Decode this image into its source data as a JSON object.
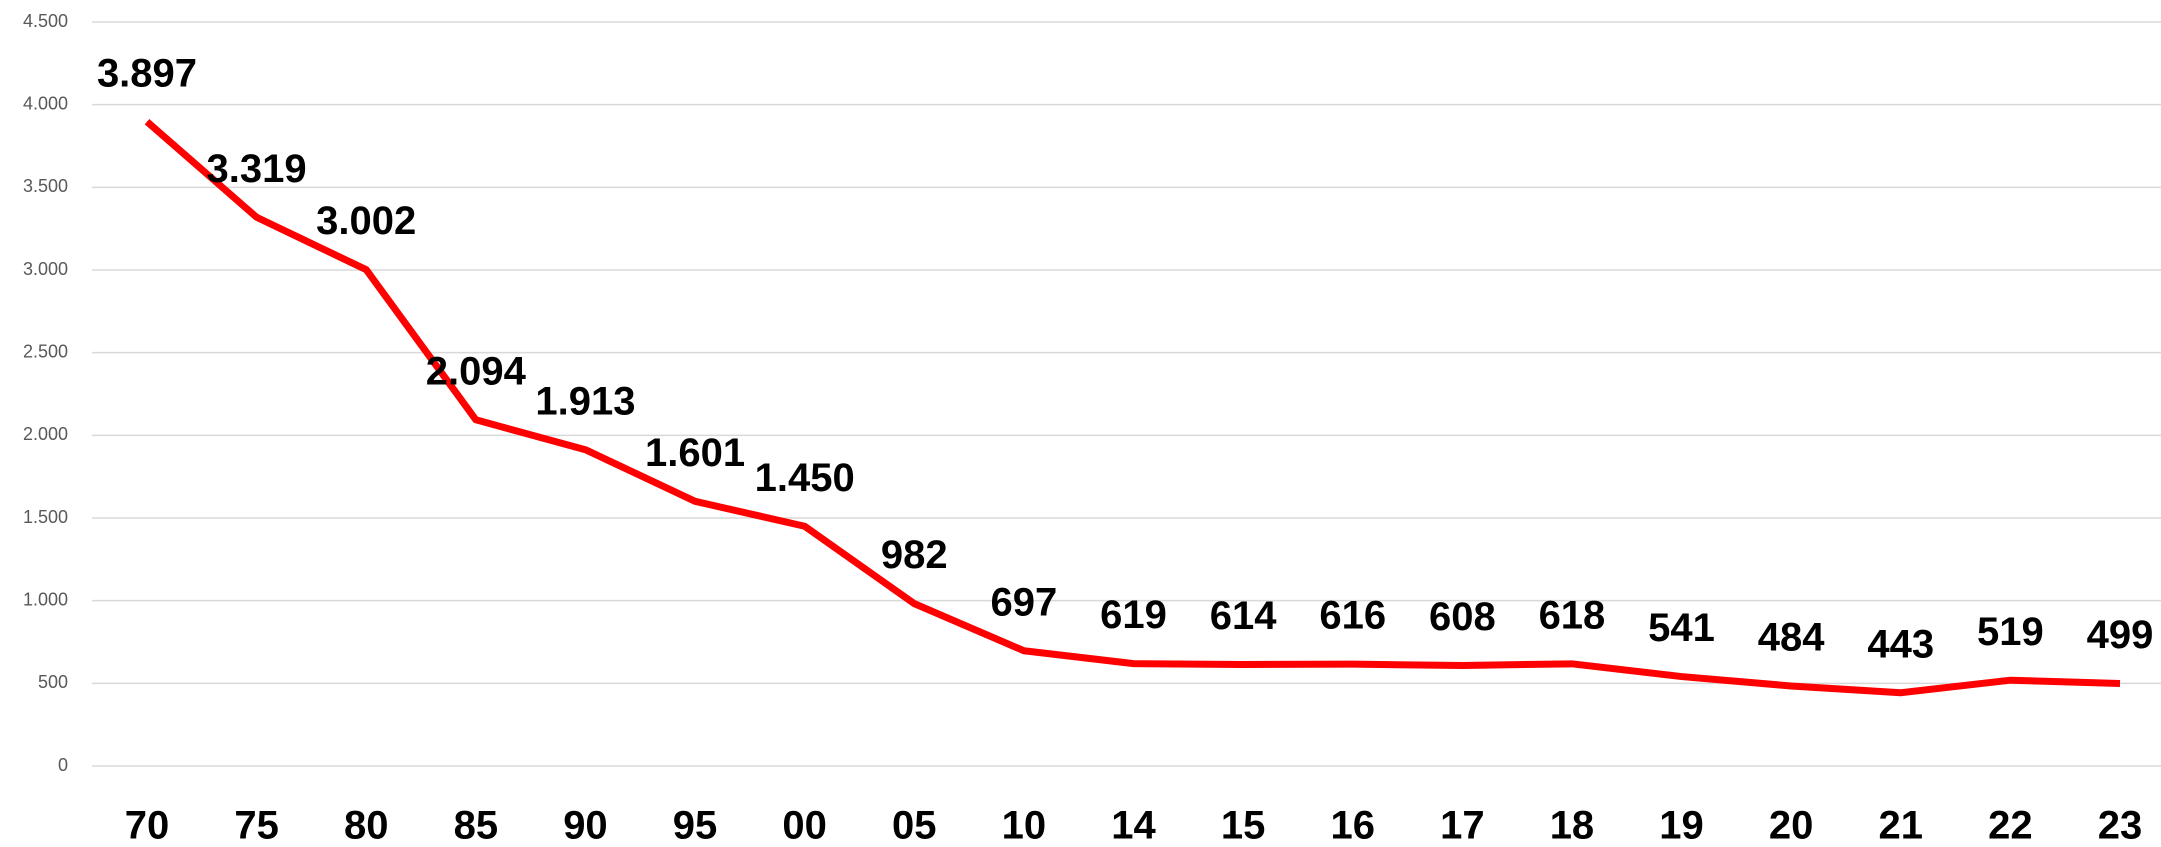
{
  "chart_data": {
    "type": "line",
    "categories": [
      "70",
      "75",
      "80",
      "85",
      "90",
      "95",
      "00",
      "05",
      "10",
      "14",
      "15",
      "16",
      "17",
      "18",
      "19",
      "20",
      "21",
      "22",
      "23"
    ],
    "series": [
      {
        "color": "#ff0000",
        "values": [
          3897,
          3319,
          3002,
          2094,
          1913,
          1601,
          1450,
          982,
          697,
          619,
          614,
          616,
          608,
          618,
          541,
          484,
          443,
          519,
          499
        ],
        "value_labels": [
          "3.897",
          "3.319",
          "3.002",
          "2.094",
          "1.913",
          "1.601",
          "1.450",
          "982",
          "697",
          "619",
          "614",
          "616",
          "608",
          "618",
          "541",
          "484",
          "443",
          "519",
          "499"
        ]
      }
    ],
    "ylim": [
      0,
      4500
    ],
    "yticks": [
      0,
      500,
      {
        "value": 1000,
        "label": "1.000"
      },
      {
        "value": 1500,
        "label": "1.500"
      },
      {
        "value": 2000,
        "label": "2.000"
      },
      {
        "value": 2500,
        "label": "2.500"
      },
      {
        "value": 3000,
        "label": "3.000"
      },
      {
        "value": 3500,
        "label": "3.500"
      },
      {
        "value": 4000,
        "label": "4.000"
      },
      {
        "value": 4500,
        "label": "4.500"
      }
    ],
    "grid": true
  }
}
